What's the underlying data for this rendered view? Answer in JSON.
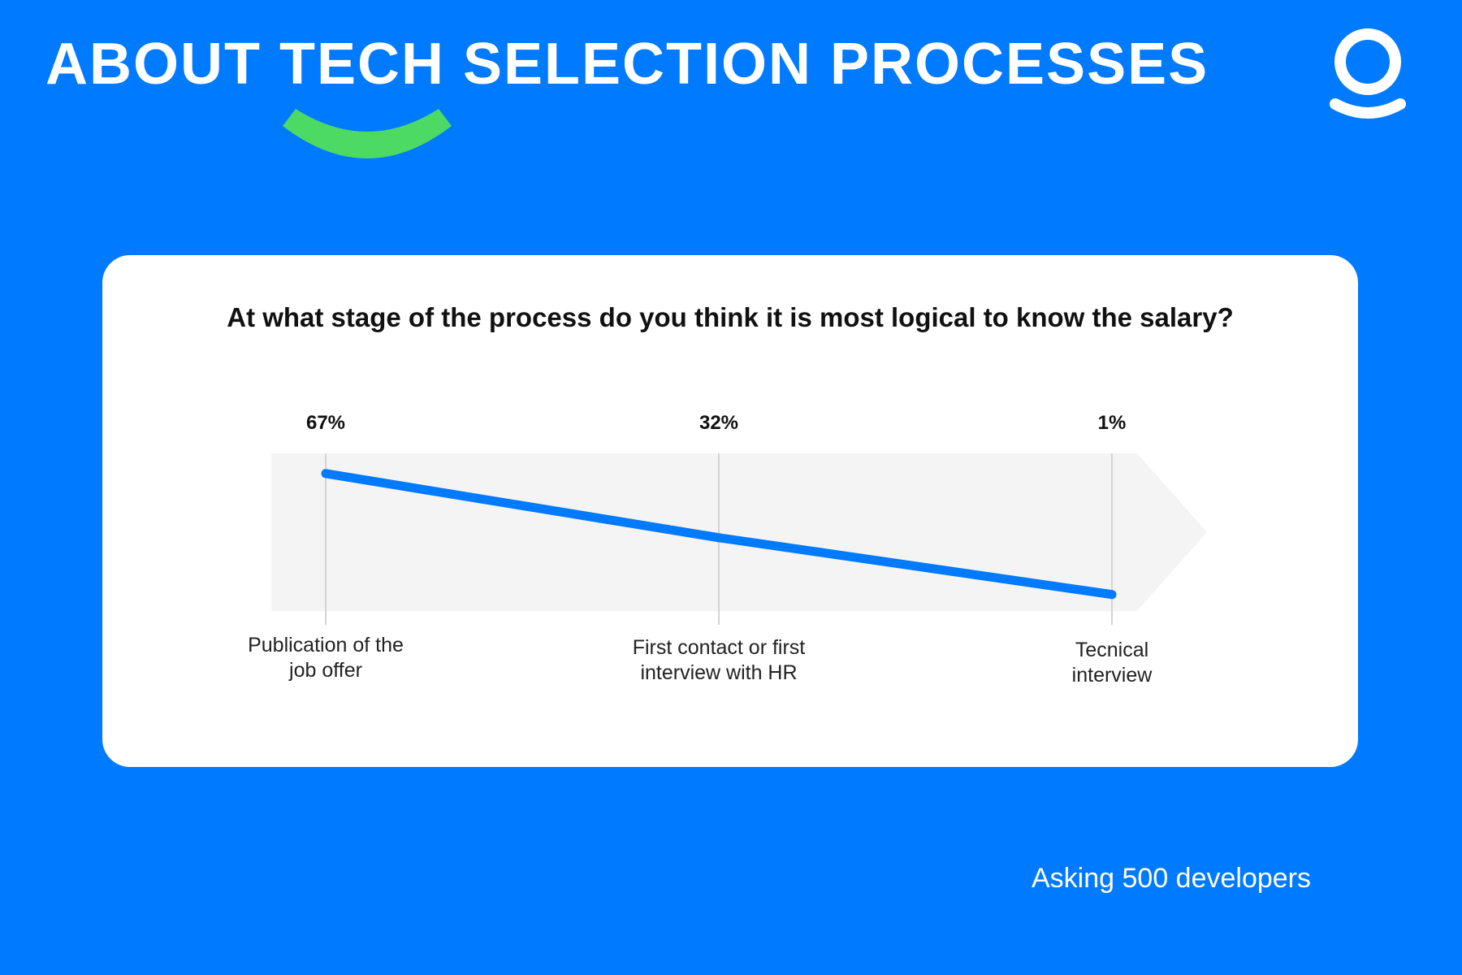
{
  "header": {
    "title": "ABOUT TECH SELECTION PROCESSES",
    "logo_icon": "ring-person-logo-icon",
    "smile_icon": "green-smile-arc-icon"
  },
  "colors": {
    "background": "#007aff",
    "accent_green": "#4cd964",
    "line": "#007aff",
    "band": "#f4f4f4"
  },
  "chart_data": {
    "type": "line",
    "title": "At what stage of the process do you think it is most logical to know the salary?",
    "categories": [
      [
        "Publication of the",
        "job offer"
      ],
      [
        "First contact or first",
        "interview with HR"
      ],
      [
        "Tecnical",
        "interview"
      ]
    ],
    "values": [
      67,
      32,
      1
    ],
    "value_labels": [
      "67%",
      "32%",
      "1%"
    ],
    "ylim": [
      0,
      70
    ],
    "grid": false
  },
  "footer": {
    "note": "Asking 500 developers"
  }
}
